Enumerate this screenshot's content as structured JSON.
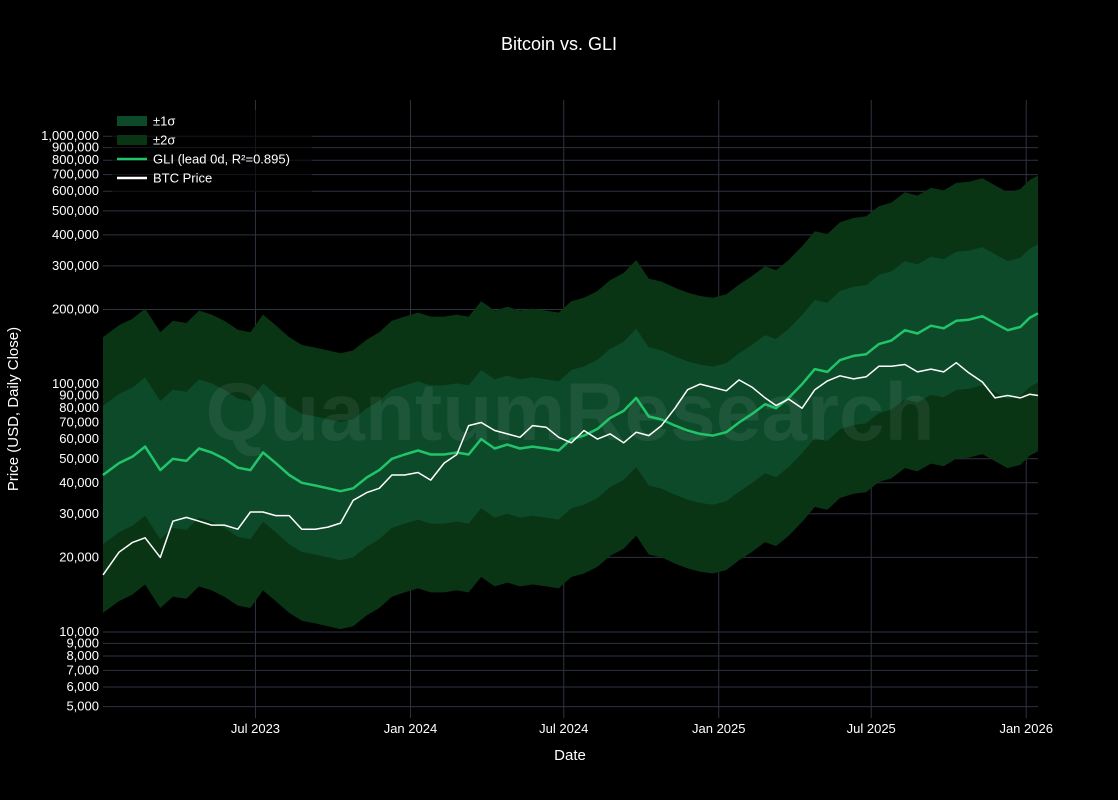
{
  "watermark": "QuantumResearch",
  "chart_data": {
    "type": "line",
    "title": "Bitcoin vs. GLI",
    "xlabel": "Date",
    "ylabel": "Price (USD, Daily Close)",
    "y_scale": "log",
    "ylim": [
      4500,
      1400000
    ],
    "xlim": [
      "2023-01-01",
      "2026-01-15"
    ],
    "grid": true,
    "legend_position": "top-left",
    "x_ticks": [
      {
        "date": "2023-07-01",
        "label": "Jul 2023"
      },
      {
        "date": "2024-01-01",
        "label": "Jan 2024"
      },
      {
        "date": "2024-07-01",
        "label": "Jul 2024"
      },
      {
        "date": "2025-01-01",
        "label": "Jan 2025"
      },
      {
        "date": "2025-07-01",
        "label": "Jul 2025"
      },
      {
        "date": "2026-01-01",
        "label": "Jan 2026"
      }
    ],
    "y_ticks": [
      {
        "value": 5000,
        "label": "5,000"
      },
      {
        "value": 6000,
        "label": "6,000"
      },
      {
        "value": 7000,
        "label": "7,000"
      },
      {
        "value": 8000,
        "label": "8,000"
      },
      {
        "value": 9000,
        "label": "9,000"
      },
      {
        "value": 10000,
        "label": "10,000"
      },
      {
        "value": 20000,
        "label": "20,000"
      },
      {
        "value": 30000,
        "label": "30,000"
      },
      {
        "value": 40000,
        "label": "40,000"
      },
      {
        "value": 50000,
        "label": "50,000"
      },
      {
        "value": 60000,
        "label": "60,000"
      },
      {
        "value": 70000,
        "label": "70,000"
      },
      {
        "value": 80000,
        "label": "80,000"
      },
      {
        "value": 90000,
        "label": "90,000"
      },
      {
        "value": 100000,
        "label": "100,000"
      },
      {
        "value": 200000,
        "label": "200,000"
      },
      {
        "value": 300000,
        "label": "300,000"
      },
      {
        "value": 400000,
        "label": "400,000"
      },
      {
        "value": 500000,
        "label": "500,000"
      },
      {
        "value": 600000,
        "label": "600,000"
      },
      {
        "value": 700000,
        "label": "700,000"
      },
      {
        "value": 800000,
        "label": "800,000"
      },
      {
        "value": 900000,
        "label": "900,000"
      },
      {
        "value": 1000000,
        "label": "1,000,000"
      }
    ],
    "legend": [
      {
        "label": "±1σ",
        "color": "#0c4a2a",
        "kind": "band"
      },
      {
        "label": "±2σ",
        "color": "#093515",
        "kind": "band"
      },
      {
        "label": "GLI  (lead 0d, R²=0.895)",
        "color": "#22c46a",
        "kind": "line"
      },
      {
        "label": "BTC Price",
        "color": "#ffffff",
        "kind": "line"
      }
    ],
    "band_multipliers": {
      "sigma1": 1.9,
      "sigma2": 3.6
    },
    "series": [
      {
        "name": "GLI  (lead 0d, R²=0.895)",
        "color": "#22c46a",
        "x": [
          "2023-01-01",
          "2023-01-20",
          "2023-02-05",
          "2023-02-20",
          "2023-03-10",
          "2023-03-25",
          "2023-04-10",
          "2023-04-25",
          "2023-05-10",
          "2023-05-25",
          "2023-06-10",
          "2023-06-25",
          "2023-07-10",
          "2023-07-25",
          "2023-08-10",
          "2023-08-25",
          "2023-09-10",
          "2023-09-25",
          "2023-10-10",
          "2023-10-25",
          "2023-11-10",
          "2023-11-25",
          "2023-12-10",
          "2023-12-25",
          "2024-01-10",
          "2024-01-25",
          "2024-02-10",
          "2024-02-25",
          "2024-03-10",
          "2024-03-25",
          "2024-04-10",
          "2024-04-25",
          "2024-05-10",
          "2024-05-25",
          "2024-06-10",
          "2024-06-25",
          "2024-07-10",
          "2024-07-25",
          "2024-08-10",
          "2024-08-25",
          "2024-09-10",
          "2024-09-25",
          "2024-10-10",
          "2024-10-25",
          "2024-11-10",
          "2024-11-25",
          "2024-12-10",
          "2024-12-25",
          "2025-01-10",
          "2025-01-25",
          "2025-02-10",
          "2025-02-25",
          "2025-03-10",
          "2025-03-25",
          "2025-04-10",
          "2025-04-25",
          "2025-05-10",
          "2025-05-25",
          "2025-06-10",
          "2025-06-25",
          "2025-07-10",
          "2025-07-25",
          "2025-08-10",
          "2025-08-25",
          "2025-09-10",
          "2025-09-25",
          "2025-10-10",
          "2025-10-25",
          "2025-11-10",
          "2025-11-25",
          "2025-12-10",
          "2025-12-25",
          "2026-01-05",
          "2026-01-15"
        ],
        "values": [
          43000,
          48000,
          51000,
          56000,
          45000,
          50000,
          49000,
          55000,
          53000,
          50000,
          46000,
          45000,
          53000,
          48000,
          43000,
          40000,
          39000,
          38000,
          37000,
          38000,
          42000,
          45000,
          50000,
          52000,
          54000,
          52000,
          52000,
          53000,
          52000,
          60000,
          55000,
          57000,
          55000,
          56000,
          55000,
          54000,
          60000,
          62000,
          66000,
          73000,
          78000,
          88000,
          74000,
          72000,
          68000,
          65000,
          63000,
          62000,
          64000,
          70000,
          76000,
          83000,
          80000,
          88000,
          100000,
          115000,
          112000,
          125000,
          130000,
          132000,
          145000,
          150000,
          165000,
          160000,
          172000,
          168000,
          180000,
          182000,
          188000,
          176000,
          165000,
          170000,
          185000,
          193000
        ]
      },
      {
        "name": "BTC Price",
        "color": "#ffffff",
        "x": [
          "2023-01-01",
          "2023-01-20",
          "2023-02-05",
          "2023-02-20",
          "2023-03-10",
          "2023-03-25",
          "2023-04-10",
          "2023-04-25",
          "2023-05-10",
          "2023-05-25",
          "2023-06-10",
          "2023-06-25",
          "2023-07-10",
          "2023-07-25",
          "2023-08-10",
          "2023-08-25",
          "2023-09-10",
          "2023-09-25",
          "2023-10-10",
          "2023-10-25",
          "2023-11-10",
          "2023-11-25",
          "2023-12-10",
          "2023-12-25",
          "2024-01-10",
          "2024-01-25",
          "2024-02-10",
          "2024-02-25",
          "2024-03-10",
          "2024-03-25",
          "2024-04-10",
          "2024-04-25",
          "2024-05-10",
          "2024-05-25",
          "2024-06-10",
          "2024-06-25",
          "2024-07-10",
          "2024-07-25",
          "2024-08-10",
          "2024-08-25",
          "2024-09-10",
          "2024-09-25",
          "2024-10-10",
          "2024-10-25",
          "2024-11-10",
          "2024-11-25",
          "2024-12-10",
          "2024-12-25",
          "2025-01-10",
          "2025-01-25",
          "2025-02-10",
          "2025-02-25",
          "2025-03-10",
          "2025-03-25",
          "2025-04-10",
          "2025-04-25",
          "2025-05-10",
          "2025-05-25",
          "2025-06-10",
          "2025-06-25",
          "2025-07-10",
          "2025-07-25",
          "2025-08-10",
          "2025-08-25",
          "2025-09-10",
          "2025-09-25",
          "2025-10-10",
          "2025-10-25",
          "2025-11-10",
          "2025-11-25",
          "2025-12-10",
          "2025-12-25",
          "2026-01-05",
          "2026-01-15"
        ],
        "values": [
          17000,
          21000,
          23000,
          24000,
          20000,
          28000,
          29000,
          28000,
          27000,
          27000,
          26000,
          30500,
          30500,
          29500,
          29500,
          26000,
          26000,
          26500,
          27500,
          34000,
          36500,
          38000,
          43000,
          43000,
          44000,
          41000,
          48000,
          52000,
          68000,
          70000,
          65000,
          63000,
          61000,
          68000,
          67000,
          61000,
          58000,
          65000,
          60000,
          63000,
          58000,
          64000,
          62000,
          68000,
          80000,
          95000,
          100000,
          97000,
          94000,
          104000,
          97000,
          88000,
          82000,
          87000,
          80000,
          95000,
          103000,
          108000,
          105000,
          107000,
          118000,
          118000,
          120000,
          112000,
          115000,
          112000,
          122000,
          111000,
          102000,
          88000,
          90000,
          88000,
          91000,
          90000
        ]
      }
    ]
  }
}
